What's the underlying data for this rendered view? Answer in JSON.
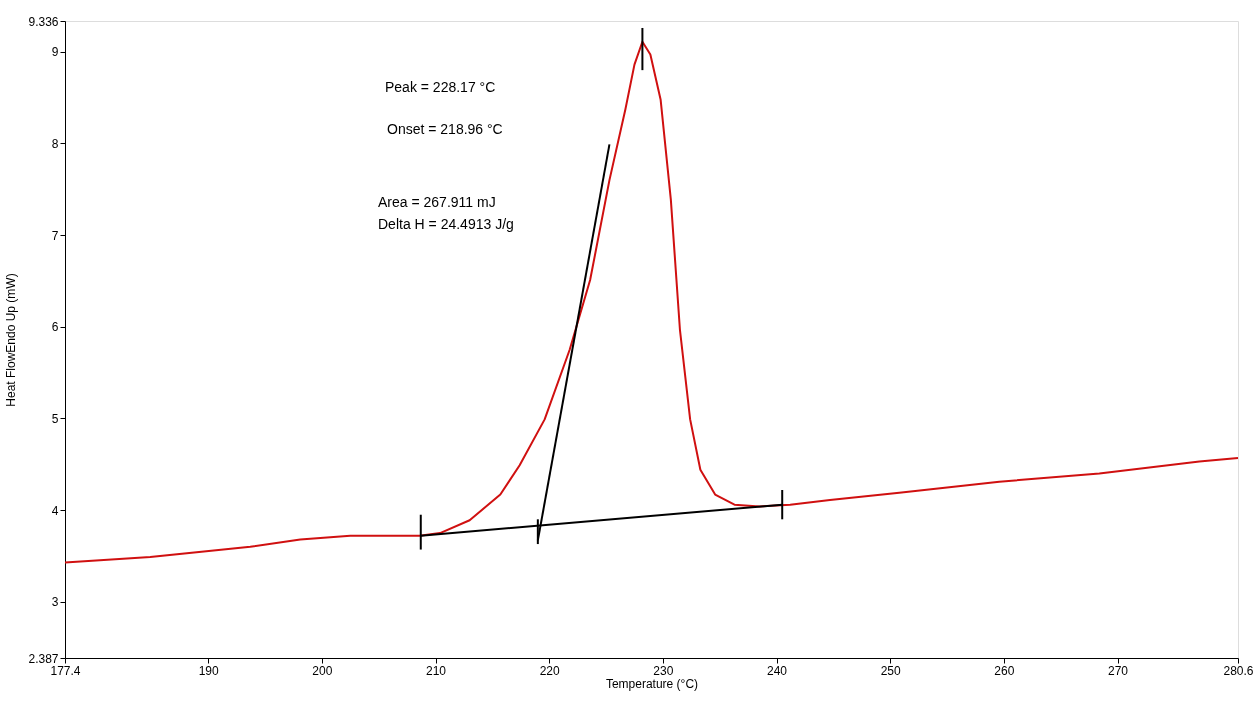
{
  "chart_data": {
    "type": "line",
    "xlabel": "Temperature (°C)",
    "ylabel": "Heat FlowEndo Up (mW)",
    "xlim": [
      177.4,
      280.6
    ],
    "ylim": [
      2.387,
      9.336
    ],
    "xticks": [
      177.4,
      190,
      200,
      210,
      220,
      230,
      240,
      250,
      260,
      270,
      280.6
    ],
    "yticks": [
      2.387,
      3,
      4,
      5,
      6,
      7,
      8,
      9,
      9.336
    ],
    "grid": false,
    "marker": "none",
    "line_style": "solid",
    "annotations": [
      "Peak = 228.17 °C",
      "Onset = 218.96 °C",
      "Area = 267.911 mJ",
      "Delta H = 24.4913 J/g"
    ],
    "series": [
      {
        "color": "#d01010",
        "x": [
          177.4,
          184.9,
          193.7,
          198.1,
          202.5,
          208.6,
          210.4,
          213.0,
          215.7,
          217.4,
          219.6,
          221.8,
          223.6,
          225.3,
          226.7,
          227.5,
          228.2,
          228.9,
          229.8,
          230.7,
          231.5,
          232.4,
          233.3,
          234.6,
          236.3,
          238.5,
          241.2,
          244.7,
          250.8,
          259.6,
          268.4,
          277.2,
          280.6
        ],
        "values": [
          3.43,
          3.49,
          3.6,
          3.68,
          3.72,
          3.72,
          3.75,
          3.89,
          4.17,
          4.49,
          4.99,
          5.75,
          6.51,
          7.6,
          8.37,
          8.86,
          9.11,
          8.97,
          8.48,
          7.39,
          5.97,
          4.99,
          4.44,
          4.17,
          4.06,
          4.04,
          4.06,
          4.11,
          4.19,
          4.31,
          4.4,
          4.53,
          4.57
        ]
      },
      {
        "color": "#000000",
        "x": [
          208.7,
          240.5
        ],
        "values": [
          3.72,
          4.06
        ]
      },
      {
        "color": "#000000",
        "x": [
          219.0,
          225.3
        ],
        "values": [
          3.67,
          7.99
        ]
      },
      {
        "color": "#000000",
        "x": [
          208.7,
          208.7
        ],
        "values": [
          3.57,
          3.95
        ]
      },
      {
        "color": "#000000",
        "x": [
          219.0,
          219.0
        ],
        "values": [
          3.63,
          3.9
        ]
      },
      {
        "color": "#000000",
        "x": [
          240.5,
          240.5
        ],
        "values": [
          3.9,
          4.22
        ]
      },
      {
        "color": "#000000",
        "x": [
          228.2,
          228.2
        ],
        "values": [
          8.8,
          9.26
        ]
      }
    ]
  }
}
